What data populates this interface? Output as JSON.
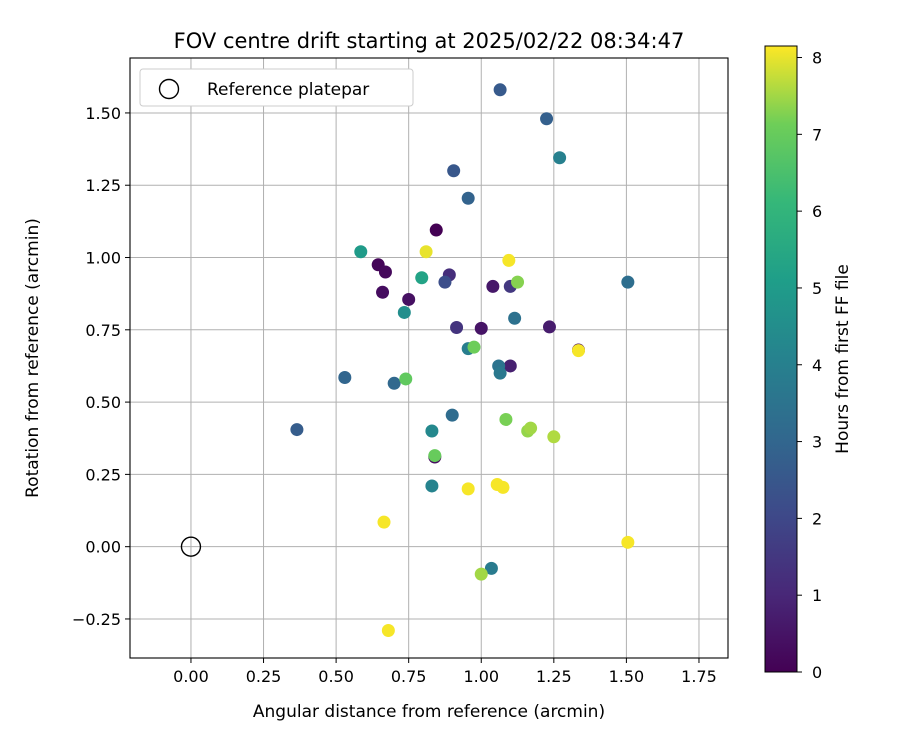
{
  "chart_data": {
    "type": "scatter",
    "title": "FOV centre drift starting at 2025/02/22 08:34:47",
    "xlabel": "Angular distance from reference (arcmin)",
    "ylabel": "Rotation from reference (arcmin)",
    "xlim": [
      -0.21,
      1.85
    ],
    "ylim": [
      -0.385,
      1.69
    ],
    "xticks": [
      "0.00",
      "0.25",
      "0.50",
      "0.75",
      "1.00",
      "1.25",
      "1.50",
      "1.75"
    ],
    "yticks": [
      "−0.25",
      "0.00",
      "0.25",
      "0.50",
      "0.75",
      "1.00",
      "1.25",
      "1.50"
    ],
    "grid": true,
    "legend": {
      "placement": "top-left",
      "label": "Reference platepar"
    },
    "reference_point": {
      "x": 0.0,
      "y": 0.0
    },
    "colorbar": {
      "label": "Hours from first FF file",
      "min": 0,
      "max": 8.15,
      "ticks": [
        "0",
        "1",
        "2",
        "3",
        "4",
        "5",
        "6",
        "7",
        "8"
      ]
    },
    "colormap": "viridis",
    "points": [
      {
        "x": 0.845,
        "y": 1.095,
        "h": 0.0
      },
      {
        "x": 0.645,
        "y": 0.975,
        "h": 0.1
      },
      {
        "x": 0.67,
        "y": 0.95,
        "h": 0.2
      },
      {
        "x": 0.66,
        "y": 0.88,
        "h": 0.3
      },
      {
        "x": 0.75,
        "y": 0.855,
        "h": 0.4
      },
      {
        "x": 1.0,
        "y": 0.755,
        "h": 0.5
      },
      {
        "x": 1.04,
        "y": 0.9,
        "h": 0.6
      },
      {
        "x": 1.235,
        "y": 0.76,
        "h": 0.7
      },
      {
        "x": 1.1,
        "y": 0.625,
        "h": 0.8
      },
      {
        "x": 1.335,
        "y": 0.68,
        "h": 0.2
      },
      {
        "x": 0.84,
        "y": 0.31,
        "h": 0.3
      },
      {
        "x": 0.89,
        "y": 0.94,
        "h": 1.2
      },
      {
        "x": 0.915,
        "y": 0.758,
        "h": 1.4
      },
      {
        "x": 1.1,
        "y": 0.9,
        "h": 1.5
      },
      {
        "x": 0.875,
        "y": 0.915,
        "h": 2.2
      },
      {
        "x": 0.905,
        "y": 1.3,
        "h": 2.5
      },
      {
        "x": 1.065,
        "y": 1.58,
        "h": 2.6
      },
      {
        "x": 1.225,
        "y": 1.48,
        "h": 2.8
      },
      {
        "x": 0.955,
        "y": 1.205,
        "h": 2.9
      },
      {
        "x": 0.365,
        "y": 0.405,
        "h": 2.7
      },
      {
        "x": 0.53,
        "y": 0.585,
        "h": 3.0
      },
      {
        "x": 0.7,
        "y": 0.565,
        "h": 3.1
      },
      {
        "x": 0.9,
        "y": 0.455,
        "h": 3.2
      },
      {
        "x": 1.115,
        "y": 0.79,
        "h": 3.4
      },
      {
        "x": 1.505,
        "y": 0.915,
        "h": 3.3
      },
      {
        "x": 1.06,
        "y": 0.625,
        "h": 3.5
      },
      {
        "x": 1.065,
        "y": 0.6,
        "h": 3.7
      },
      {
        "x": 1.035,
        "y": -0.075,
        "h": 3.8
      },
      {
        "x": 0.955,
        "y": 0.685,
        "h": 3.9
      },
      {
        "x": 1.27,
        "y": 1.345,
        "h": 4.0
      },
      {
        "x": 0.83,
        "y": 0.21,
        "h": 4.1
      },
      {
        "x": 0.83,
        "y": 0.4,
        "h": 4.3
      },
      {
        "x": 0.735,
        "y": 0.81,
        "h": 4.5
      },
      {
        "x": 0.585,
        "y": 1.02,
        "h": 5.0
      },
      {
        "x": 0.795,
        "y": 0.93,
        "h": 5.3
      },
      {
        "x": 0.74,
        "y": 0.58,
        "h": 6.9
      },
      {
        "x": 0.84,
        "y": 0.315,
        "h": 7.0
      },
      {
        "x": 0.975,
        "y": 0.69,
        "h": 7.1
      },
      {
        "x": 1.085,
        "y": 0.44,
        "h": 7.2
      },
      {
        "x": 1.125,
        "y": 0.915,
        "h": 7.3
      },
      {
        "x": 1.16,
        "y": 0.4,
        "h": 7.4
      },
      {
        "x": 1.17,
        "y": 0.41,
        "h": 7.5
      },
      {
        "x": 1.25,
        "y": 0.38,
        "h": 7.6
      },
      {
        "x": 1.0,
        "y": -0.095,
        "h": 7.5
      },
      {
        "x": 0.81,
        "y": 1.02,
        "h": 8.0
      },
      {
        "x": 1.095,
        "y": 0.99,
        "h": 8.1
      },
      {
        "x": 1.335,
        "y": 0.678,
        "h": 8.1
      },
      {
        "x": 0.955,
        "y": 0.2,
        "h": 8.1
      },
      {
        "x": 1.055,
        "y": 0.215,
        "h": 8.1
      },
      {
        "x": 1.075,
        "y": 0.205,
        "h": 8.1
      },
      {
        "x": 0.665,
        "y": 0.085,
        "h": 8.1
      },
      {
        "x": 0.68,
        "y": -0.29,
        "h": 8.1
      },
      {
        "x": 1.505,
        "y": 0.015,
        "h": 8.1
      }
    ]
  }
}
